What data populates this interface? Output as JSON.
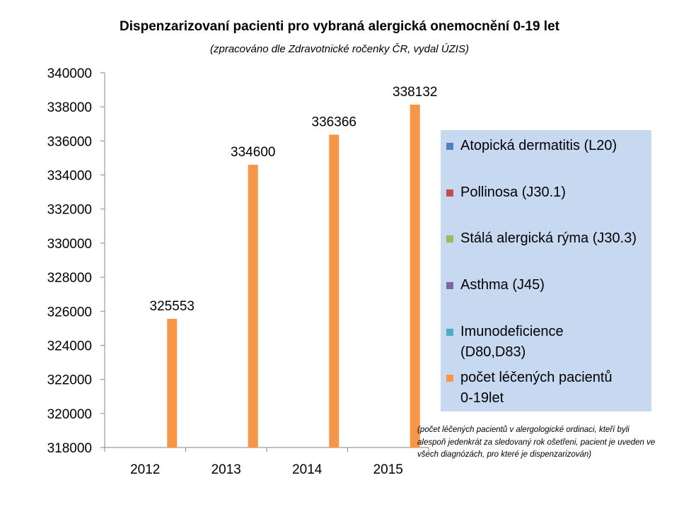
{
  "chart_data": {
    "type": "bar",
    "title": "Dispenzarizovaní pacienti pro vybraná alergická onemocnění 0-19 let",
    "subtitle": "(zpracováno dle Zdravotnické ročenky ČR, vydal ÚZIS)",
    "categories": [
      "2012",
      "2013",
      "2014",
      "2015"
    ],
    "series": [
      {
        "name": "Atopická dermatitis (L20)",
        "color": "#4f81bd",
        "values": [
          null,
          null,
          null,
          null
        ]
      },
      {
        "name": "Pollinosa (J30.1)",
        "color": "#c0504d",
        "values": [
          null,
          null,
          null,
          null
        ]
      },
      {
        "name": "Stálá alergická rýma (J30.3)",
        "color": "#9bbb59",
        "values": [
          null,
          null,
          null,
          null
        ]
      },
      {
        "name": "Asthma (J45)",
        "color": "#8064a2",
        "values": [
          null,
          null,
          null,
          null
        ]
      },
      {
        "name": "Imunodeficience (D80,D83)",
        "color": "#4bacc6",
        "values": [
          null,
          null,
          null,
          null
        ]
      },
      {
        "name": "počet léčených pacientů 0-19let",
        "color": "#f79646",
        "values": [
          325553,
          334600,
          336366,
          338132
        ]
      }
    ],
    "data_labels": [
      "325553",
      "334600",
      "336366",
      "338132"
    ],
    "yticks": [
      "340000",
      "338000",
      "336000",
      "334000",
      "332000",
      "330000",
      "328000",
      "326000",
      "324000",
      "322000",
      "320000",
      "318000"
    ],
    "ylim": [
      318000,
      340000
    ],
    "xlabel": "",
    "ylabel": "",
    "grid": false,
    "legend_position": "right"
  },
  "legend": [
    {
      "lines": [
        "Atopická dermatitis (L20)"
      ],
      "color": "#4f81bd"
    },
    {
      "lines": [
        "Pollinosa (J30.1)"
      ],
      "color": "#c0504d"
    },
    {
      "lines": [
        "Stálá alergická rýma (J30.3)"
      ],
      "color": "#9bbb59"
    },
    {
      "lines": [
        "Asthma (J45)"
      ],
      "color": "#8064a2"
    },
    {
      "lines": [
        "Imunodeficience",
        "(D80,D83)"
      ],
      "color": "#4bacc6"
    },
    {
      "lines": [
        "počet léčených pacientů",
        "0-19let"
      ],
      "color": "#f79646"
    }
  ],
  "note": "(počet léčených pacientů v alergologické ordinaci, kteří byli alespoň jedenkrát za sledovaný rok ošetřeni, pacient je uveden ve všech diagnózách, pro které je dispenzarizován)"
}
